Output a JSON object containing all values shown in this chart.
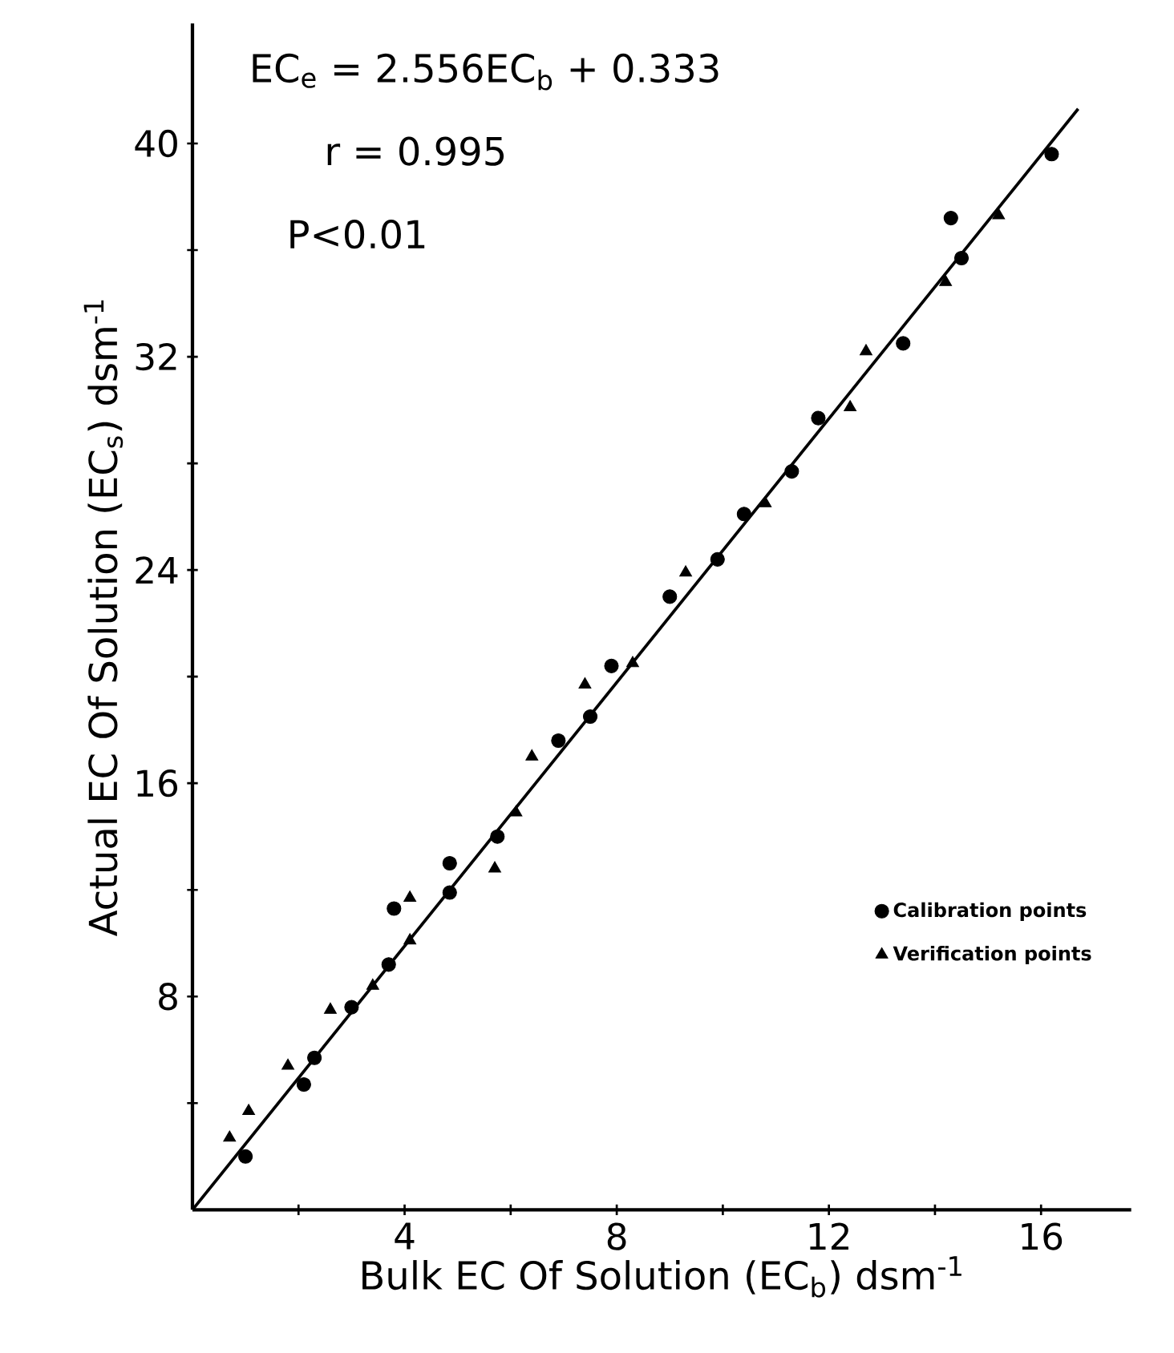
{
  "chart_data": {
    "type": "scatter",
    "xlabel": "Bulk EC Of Solution (EC$_{b}$) dsm$^{-1}$",
    "ylabel": "Actual EC Of Solution (EC$_{s}$) dsm$^{-1}$",
    "annotations": [
      "EC$_{e}$ = 2.556EC$_{b}$ + 0.333",
      "r = 0.995",
      "P<0.01"
    ],
    "xlim": [
      0,
      17.7
    ],
    "ylim": [
      0,
      44.5
    ],
    "xticks": [
      {
        "value": 2,
        "label": null
      },
      4,
      {
        "value": 6,
        "label": null
      },
      8,
      {
        "value": 10,
        "label": null
      },
      12,
      {
        "value": 14,
        "label": null
      },
      16
    ],
    "yticks": [
      {
        "value": 4,
        "label": null
      },
      8,
      {
        "value": 12,
        "label": null
      },
      16,
      {
        "value": 20,
        "label": null
      },
      24,
      {
        "value": 28,
        "label": null
      },
      32,
      {
        "value": 36,
        "label": null
      },
      40
    ],
    "legend": "bottom right",
    "grid": false,
    "series": [
      {
        "name": "Calibration points",
        "color": "#000000",
        "marker": "circle",
        "x": [
          1.0,
          2.1,
          2.3,
          3.0,
          3.7,
          3.8,
          4.85,
          4.85,
          5.75,
          6.9,
          7.5,
          7.9,
          9.0,
          9.9,
          10.4,
          11.3,
          11.8,
          13.4,
          14.3,
          14.5,
          16.2
        ],
        "values": [
          2.0,
          4.7,
          5.7,
          7.6,
          9.2,
          11.3,
          11.9,
          13.0,
          14.0,
          17.6,
          18.5,
          20.4,
          23.0,
          24.4,
          26.1,
          27.7,
          29.7,
          32.5,
          37.2,
          35.7,
          39.6
        ]
      },
      {
        "name": "Verification points",
        "color": "#000000",
        "marker": "triangle",
        "x": [
          0.7,
          1.06,
          1.8,
          2.6,
          3.4,
          4.1,
          4.1,
          5.7,
          6.1,
          6.4,
          7.4,
          8.3,
          9.3,
          10.8,
          12.4,
          12.7,
          14.2,
          15.2
        ],
        "values": [
          2.7,
          3.7,
          5.4,
          7.5,
          8.4,
          11.7,
          10.1,
          12.8,
          14.9,
          17.0,
          19.7,
          20.5,
          23.9,
          26.5,
          30.1,
          32.2,
          34.8,
          37.3
        ]
      },
      {
        "type": "line",
        "color": "#000000",
        "marker": "none",
        "line_style": "solid",
        "x": [
          0,
          16.7
        ],
        "values": [
          0,
          41.3
        ]
      }
    ]
  }
}
